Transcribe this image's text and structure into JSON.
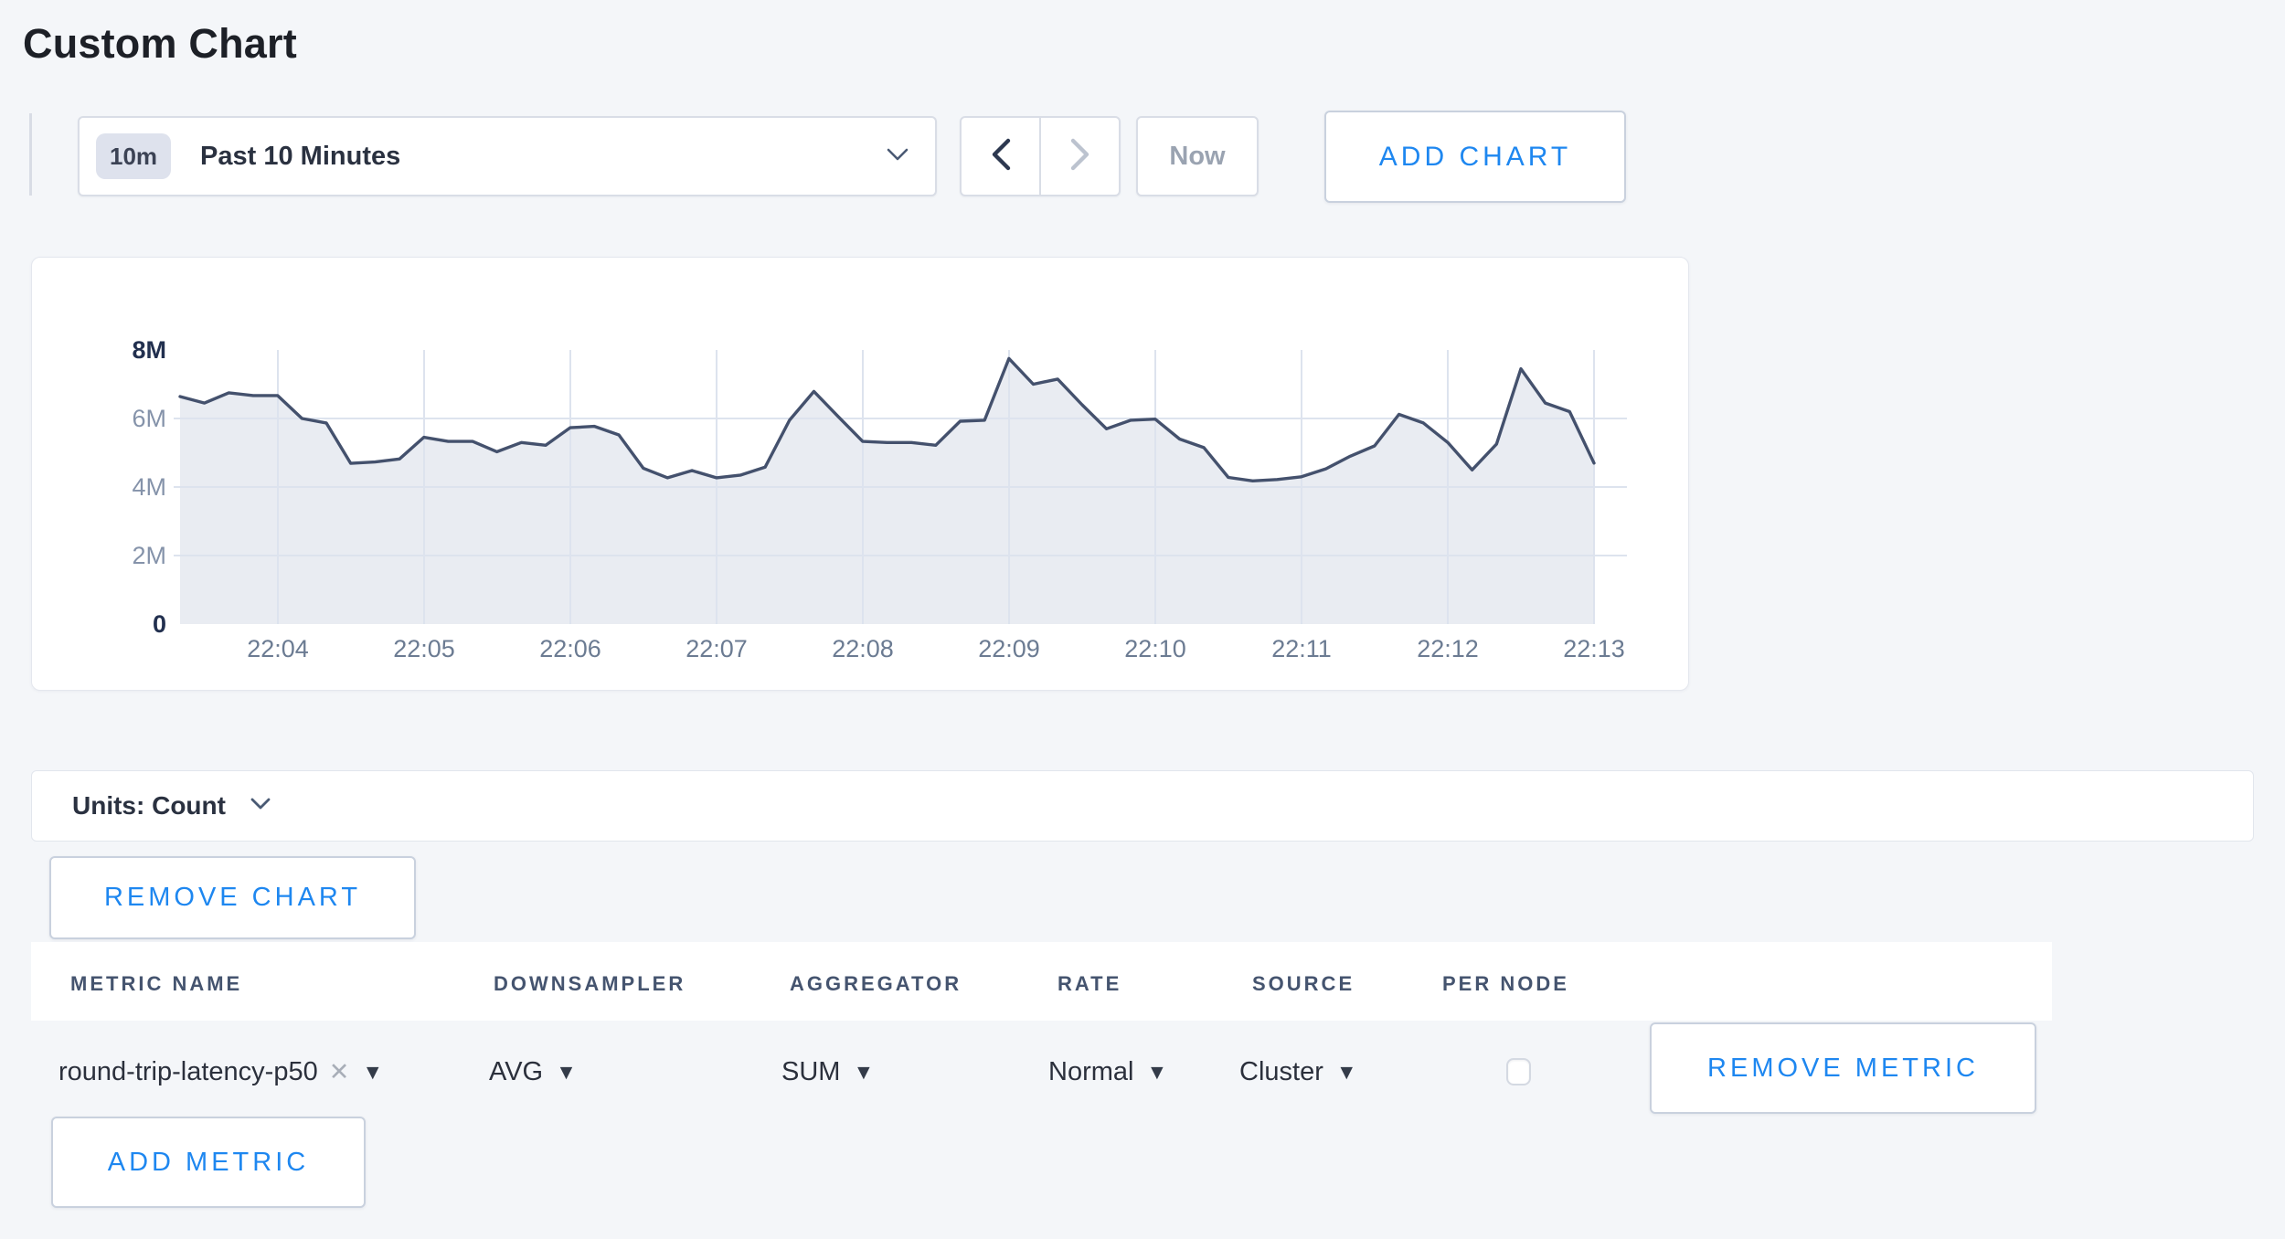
{
  "page": {
    "title": "Custom Chart"
  },
  "colors": {
    "accent_blue": "#1e87f0",
    "page_background": "#f4f6f9",
    "chart_line": "#44516d",
    "chart_fill": "#e9ecf2",
    "grid_line": "#dde3ee"
  },
  "toolbar": {
    "time_range": {
      "badge": "10m",
      "label": "Past 10 Minutes"
    },
    "now_label": "Now",
    "add_chart_label": "ADD CHART"
  },
  "units_bar": {
    "label": "Units: Count"
  },
  "chart_actions": {
    "remove_chart_label": "REMOVE CHART",
    "remove_metric_label": "REMOVE METRIC",
    "add_metric_label": "ADD METRIC"
  },
  "metrics_table": {
    "columns": [
      "METRIC NAME",
      "DOWNSAMPLER",
      "AGGREGATOR",
      "RATE",
      "SOURCE",
      "PER NODE"
    ],
    "row": {
      "metric_name": "round-trip-latency-p50",
      "clear_symbol": "✕",
      "downsampler": "AVG",
      "aggregator": "SUM",
      "rate": "Normal",
      "source": "Cluster",
      "per_node_checked": false
    }
  },
  "chart_data": {
    "type": "area",
    "title": "",
    "unit": "Count",
    "start_time": "22:03:20",
    "interval_seconds": 10,
    "x_tick_labels": [
      "22:04",
      "22:05",
      "22:06",
      "22:07",
      "22:08",
      "22:09",
      "22:10",
      "22:11",
      "22:12",
      "22:13"
    ],
    "y_tick_labels": [
      "0",
      "2M",
      "4M",
      "6M",
      "8M"
    ],
    "ylim": [
      0,
      8000000
    ],
    "grid": true,
    "legend": "none",
    "line_color": "#44516d",
    "fill_color": "#e9ecf2",
    "series": [
      {
        "name": "round-trip-latency-p50",
        "values_millions": [
          6.64,
          6.45,
          6.75,
          6.67,
          6.67,
          6.0,
          5.87,
          4.69,
          4.73,
          4.82,
          5.45,
          5.33,
          5.33,
          5.03,
          5.3,
          5.22,
          5.73,
          5.77,
          5.52,
          4.55,
          4.27,
          4.48,
          4.27,
          4.35,
          4.58,
          5.95,
          6.79,
          6.05,
          5.33,
          5.3,
          5.3,
          5.22,
          5.92,
          5.95,
          7.75,
          7.0,
          7.15,
          6.4,
          5.7,
          5.95,
          5.98,
          5.4,
          5.15,
          4.28,
          4.18,
          4.22,
          4.3,
          4.53,
          4.9,
          5.2,
          6.12,
          5.87,
          5.3,
          4.5,
          5.25,
          7.45,
          6.45,
          6.2,
          4.7
        ]
      }
    ]
  }
}
